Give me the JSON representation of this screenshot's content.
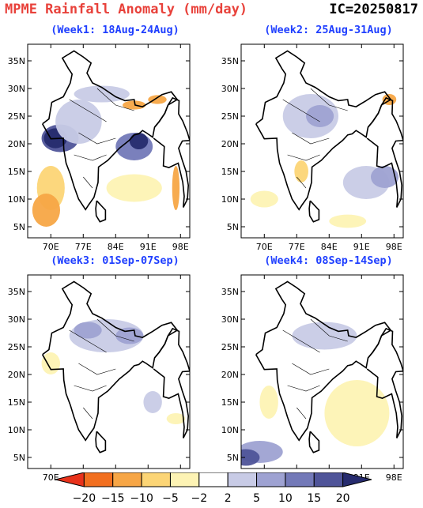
{
  "header": {
    "title": "MPME Rainfall Anomaly (mm/day)",
    "ic": "IC=20250817"
  },
  "panels": [
    {
      "title": "(Week1: 18Aug-24Aug)"
    },
    {
      "title": "(Week2: 25Aug-31Aug)"
    },
    {
      "title": "(Week3: 01Sep-07Sep)"
    },
    {
      "title": "(Week4: 08Sep-14Sep)"
    }
  ],
  "axes": {
    "lat_labels": [
      "35N",
      "30N",
      "25N",
      "20N",
      "15N",
      "10N",
      "5N"
    ],
    "lat_values": [
      35,
      30,
      25,
      20,
      15,
      10,
      5
    ],
    "lon_labels": [
      "70E",
      "77E",
      "84E",
      "91E",
      "98E"
    ],
    "lon_values": [
      70,
      77,
      84,
      91,
      98
    ],
    "lon_range": [
      65,
      100
    ],
    "lat_range": [
      3,
      38
    ]
  },
  "colorbar": {
    "labels": [
      "-20",
      "-15",
      "-10",
      "-5",
      "-2",
      "2",
      "5",
      "10",
      "15",
      "20"
    ],
    "colors": [
      "#e8321b",
      "#f26f1f",
      "#f7a646",
      "#fcd576",
      "#fdf3b4",
      "#ffffff",
      "#c8cbe6",
      "#9ea2d2",
      "#7379b8",
      "#4f5499",
      "#262b6e"
    ]
  }
}
